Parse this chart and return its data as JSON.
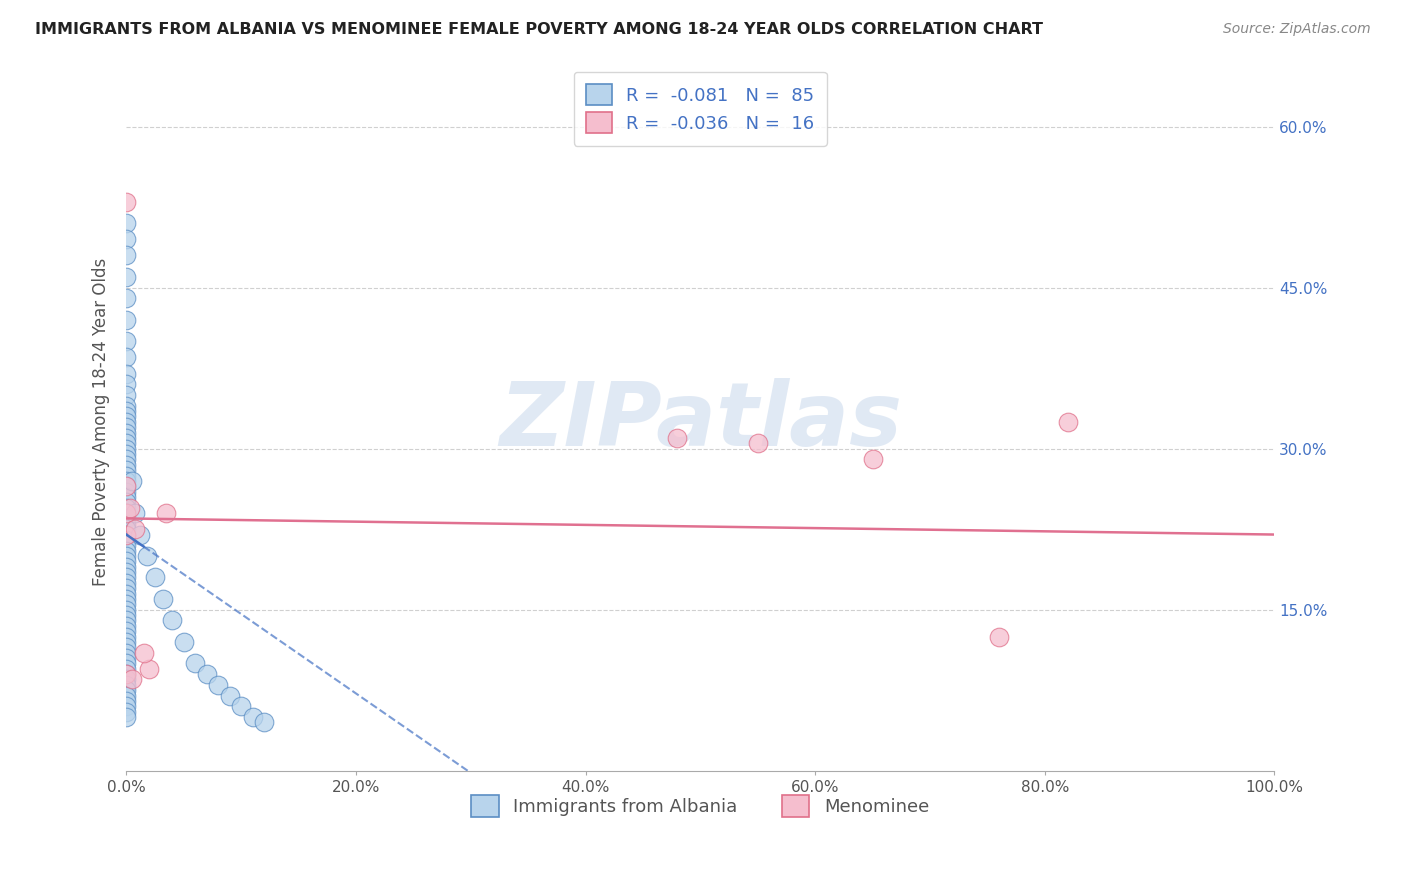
{
  "title": "IMMIGRANTS FROM ALBANIA VS MENOMINEE FEMALE POVERTY AMONG 18-24 YEAR OLDS CORRELATION CHART",
  "source": "Source: ZipAtlas.com",
  "ylabel": "Female Poverty Among 18-24 Year Olds",
  "xlim": [
    0,
    100
  ],
  "ylim": [
    0,
    65
  ],
  "yticks": [
    0,
    15,
    30,
    45,
    60
  ],
  "ytick_labels": [
    "",
    "15.0%",
    "30.0%",
    "45.0%",
    "60.0%"
  ],
  "xtick_vals": [
    0,
    20,
    40,
    60,
    80,
    100
  ],
  "xtick_labels": [
    "0.0%",
    "20.0%",
    "40.0%",
    "60.0%",
    "80.0%",
    "100.0%"
  ],
  "blue_r": "-0.081",
  "blue_n": "85",
  "pink_r": "-0.036",
  "pink_n": "16",
  "blue_fill": "#b8d4ec",
  "blue_edge": "#5b8ec4",
  "pink_fill": "#f5bece",
  "pink_edge": "#e0708a",
  "blue_trend_color": "#4472c4",
  "pink_trend_color": "#e07090",
  "bg_color": "#ffffff",
  "grid_color": "#d0d0d0",
  "watermark_color": "#d8e4f0",
  "title_color": "#222222",
  "source_color": "#888888",
  "axis_label_color": "#555555",
  "right_tick_color": "#4472c4",
  "legend_label_blue": "Immigrants from Albania",
  "legend_label_pink": "Menominee",
  "blue_scatter_x": [
    0.0,
    0.0,
    0.0,
    0.0,
    0.0,
    0.0,
    0.0,
    0.0,
    0.0,
    0.0,
    0.0,
    0.0,
    0.0,
    0.0,
    0.0,
    0.0,
    0.0,
    0.0,
    0.0,
    0.0,
    0.0,
    0.0,
    0.0,
    0.0,
    0.0,
    0.0,
    0.0,
    0.0,
    0.0,
    0.0,
    0.0,
    0.0,
    0.0,
    0.0,
    0.0,
    0.0,
    0.0,
    0.0,
    0.0,
    0.0,
    0.0,
    0.0,
    0.0,
    0.0,
    0.0,
    0.0,
    0.0,
    0.0,
    0.0,
    0.0,
    0.0,
    0.0,
    0.0,
    0.0,
    0.0,
    0.0,
    0.0,
    0.0,
    0.0,
    0.0,
    0.0,
    0.0,
    0.0,
    0.0,
    0.0,
    0.0,
    0.0,
    0.0,
    0.0,
    0.0,
    0.5,
    0.8,
    1.2,
    1.8,
    2.5,
    3.2,
    4.0,
    5.0,
    6.0,
    7.0,
    8.0,
    9.0,
    10.0,
    11.0,
    12.0
  ],
  "blue_scatter_y": [
    51.0,
    49.5,
    48.0,
    46.0,
    44.0,
    42.0,
    40.0,
    38.5,
    37.0,
    36.0,
    35.0,
    34.0,
    33.5,
    33.0,
    32.5,
    32.0,
    31.5,
    31.0,
    30.5,
    30.0,
    29.5,
    29.0,
    28.5,
    28.0,
    27.5,
    27.0,
    26.5,
    26.0,
    25.5,
    25.0,
    24.5,
    24.0,
    23.5,
    23.0,
    22.5,
    22.0,
    21.5,
    21.0,
    20.5,
    20.0,
    19.5,
    19.0,
    18.5,
    18.0,
    17.5,
    17.0,
    16.5,
    16.0,
    15.5,
    15.0,
    14.5,
    14.0,
    13.5,
    13.0,
    12.5,
    12.0,
    11.5,
    11.0,
    10.5,
    10.0,
    9.5,
    9.0,
    8.5,
    8.0,
    7.5,
    7.0,
    6.5,
    6.0,
    5.5,
    5.0,
    27.0,
    24.0,
    22.0,
    20.0,
    18.0,
    16.0,
    14.0,
    12.0,
    10.0,
    9.0,
    8.0,
    7.0,
    6.0,
    5.0,
    4.5
  ],
  "pink_scatter_x": [
    0.0,
    0.0,
    0.0,
    0.0,
    0.0,
    0.5,
    2.0,
    48.0,
    55.0,
    65.0,
    76.0,
    82.0,
    0.3,
    0.8,
    1.5,
    3.5
  ],
  "pink_scatter_y": [
    53.0,
    26.5,
    24.0,
    22.0,
    9.0,
    8.5,
    9.5,
    31.0,
    30.5,
    29.0,
    12.5,
    32.5,
    24.5,
    22.5,
    11.0,
    24.0
  ]
}
